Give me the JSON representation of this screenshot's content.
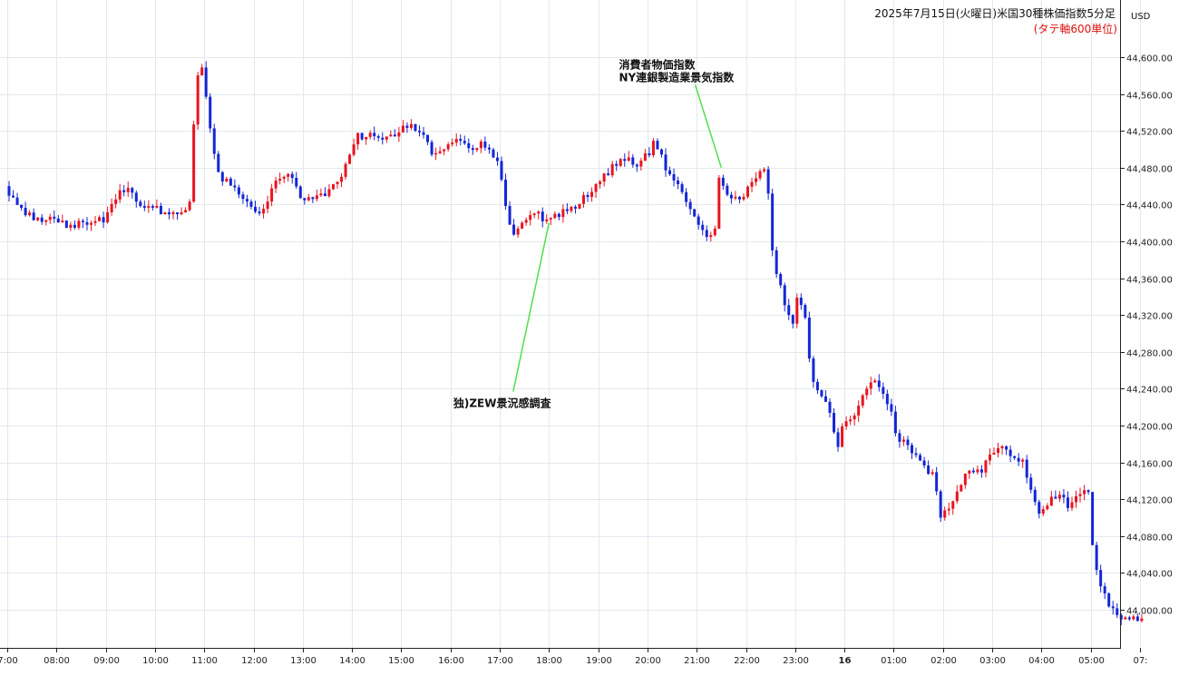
{
  "chart_data": {
    "type": "candlestick",
    "title": "2025年7月15日(火曜日)米国30種株価指数5分足",
    "subtitle": "(タテ軸600単位)",
    "currency": "USD",
    "grid": true,
    "ylim": [
      43960,
      44640
    ],
    "y_ticks": [
      "44,000.00",
      "44,040.00",
      "44,080.00",
      "44,120.00",
      "44,160.00",
      "44,200.00",
      "44,240.00",
      "44,280.00",
      "44,320.00",
      "44,360.00",
      "44,400.00",
      "44,440.00",
      "44,480.00",
      "44,520.00",
      "44,560.00",
      "44,600.00"
    ],
    "y_tick_values": [
      44000,
      44040,
      44080,
      44120,
      44160,
      44200,
      44240,
      44280,
      44320,
      44360,
      44400,
      44440,
      44480,
      44520,
      44560,
      44600
    ],
    "x_ticks": [
      {
        "label": "7:00",
        "hours": 7
      },
      {
        "label": "08:00",
        "hours": 8
      },
      {
        "label": "09:00",
        "hours": 9
      },
      {
        "label": "10:00",
        "hours": 10
      },
      {
        "label": "11:00",
        "hours": 11
      },
      {
        "label": "12:00",
        "hours": 12
      },
      {
        "label": "13:00",
        "hours": 13
      },
      {
        "label": "14:00",
        "hours": 14
      },
      {
        "label": "15:00",
        "hours": 15
      },
      {
        "label": "16:00",
        "hours": 16
      },
      {
        "label": "17:00",
        "hours": 17
      },
      {
        "label": "18:00",
        "hours": 18
      },
      {
        "label": "19:00",
        "hours": 19
      },
      {
        "label": "20:00",
        "hours": 20
      },
      {
        "label": "21:00",
        "hours": 21
      },
      {
        "label": "22:00",
        "hours": 22
      },
      {
        "label": "23:00",
        "hours": 23
      },
      {
        "label": "16",
        "hours": 24,
        "bold": true
      },
      {
        "label": "01:00",
        "hours": 25
      },
      {
        "label": "02:00",
        "hours": 26
      },
      {
        "label": "03:00",
        "hours": 27
      },
      {
        "label": "04:00",
        "hours": 28
      },
      {
        "label": "05:00",
        "hours": 29
      },
      {
        "label": "07:",
        "hours": 30
      }
    ],
    "up_color": "#e8141f",
    "down_color": "#1426d6",
    "annotations": [
      {
        "lines": [
          "独)ZEW景況感調査"
        ],
        "at_hours": 18.0,
        "at_price": 44420,
        "label_hours": 17.2,
        "label_price": 44232
      },
      {
        "lines": [
          "消費者物価指数",
          "NY連銀製造業景気指数"
        ],
        "at_hours": 21.5,
        "at_price": 44480,
        "label_hours": 21.3,
        "label_price": 44580
      }
    ],
    "waypoints": [
      [
        7.0,
        44460
      ],
      [
        7.25,
        44440
      ],
      [
        7.6,
        44425
      ],
      [
        8.0,
        44425
      ],
      [
        8.3,
        44415
      ],
      [
        8.6,
        44420
      ],
      [
        9.0,
        44425
      ],
      [
        9.25,
        44450
      ],
      [
        9.5,
        44455
      ],
      [
        9.8,
        44440
      ],
      [
        10.0,
        44435
      ],
      [
        10.3,
        44430
      ],
      [
        10.6,
        44425
      ],
      [
        10.75,
        44440
      ],
      [
        10.85,
        44540
      ],
      [
        10.95,
        44600
      ],
      [
        11.05,
        44570
      ],
      [
        11.2,
        44510
      ],
      [
        11.35,
        44470
      ],
      [
        11.5,
        44465
      ],
      [
        11.8,
        44450
      ],
      [
        12.0,
        44440
      ],
      [
        12.2,
        44430
      ],
      [
        12.4,
        44455
      ],
      [
        12.6,
        44470
      ],
      [
        12.8,
        44470
      ],
      [
        13.0,
        44450
      ],
      [
        13.2,
        44445
      ],
      [
        13.4,
        44450
      ],
      [
        13.6,
        44455
      ],
      [
        13.8,
        44470
      ],
      [
        14.0,
        44490
      ],
      [
        14.15,
        44515
      ],
      [
        14.4,
        44515
      ],
      [
        14.7,
        44510
      ],
      [
        15.0,
        44520
      ],
      [
        15.3,
        44525
      ],
      [
        15.5,
        44515
      ],
      [
        15.7,
        44495
      ],
      [
        15.9,
        44500
      ],
      [
        16.15,
        44510
      ],
      [
        16.4,
        44500
      ],
      [
        16.7,
        44505
      ],
      [
        16.9,
        44495
      ],
      [
        17.05,
        44480
      ],
      [
        17.15,
        44445
      ],
      [
        17.3,
        44405
      ],
      [
        17.5,
        44420
      ],
      [
        17.7,
        44435
      ],
      [
        17.9,
        44425
      ],
      [
        18.1,
        44425
      ],
      [
        18.4,
        44435
      ],
      [
        18.7,
        44445
      ],
      [
        19.0,
        44460
      ],
      [
        19.3,
        44480
      ],
      [
        19.6,
        44495
      ],
      [
        19.8,
        44475
      ],
      [
        20.0,
        44495
      ],
      [
        20.2,
        44510
      ],
      [
        20.4,
        44480
      ],
      [
        20.6,
        44465
      ],
      [
        20.8,
        44445
      ],
      [
        21.0,
        44430
      ],
      [
        21.2,
        44410
      ],
      [
        21.4,
        44400
      ],
      [
        21.5,
        44470
      ],
      [
        21.65,
        44450
      ],
      [
        21.8,
        44445
      ],
      [
        22.0,
        44450
      ],
      [
        22.2,
        44470
      ],
      [
        22.4,
        44480
      ],
      [
        22.5,
        44455
      ],
      [
        22.6,
        44380
      ],
      [
        22.8,
        44340
      ],
      [
        23.0,
        44310
      ],
      [
        23.1,
        44345
      ],
      [
        23.25,
        44320
      ],
      [
        23.35,
        44260
      ],
      [
        23.5,
        44240
      ],
      [
        23.7,
        44225
      ],
      [
        23.9,
        44170
      ],
      [
        24.0,
        44200
      ],
      [
        24.2,
        44205
      ],
      [
        24.4,
        44235
      ],
      [
        24.6,
        44250
      ],
      [
        24.8,
        44235
      ],
      [
        25.0,
        44215
      ],
      [
        25.1,
        44185
      ],
      [
        25.3,
        44180
      ],
      [
        25.5,
        44170
      ],
      [
        25.7,
        44150
      ],
      [
        25.85,
        44145
      ],
      [
        26.0,
        44100
      ],
      [
        26.2,
        44110
      ],
      [
        26.4,
        44135
      ],
      [
        26.6,
        44155
      ],
      [
        26.8,
        44150
      ],
      [
        27.0,
        44170
      ],
      [
        27.2,
        44175
      ],
      [
        27.4,
        44170
      ],
      [
        27.6,
        44165
      ],
      [
        27.8,
        44140
      ],
      [
        28.0,
        44100
      ],
      [
        28.2,
        44115
      ],
      [
        28.4,
        44130
      ],
      [
        28.6,
        44110
      ],
      [
        28.8,
        44125
      ],
      [
        29.0,
        44130
      ],
      [
        29.1,
        44060
      ],
      [
        29.25,
        44025
      ],
      [
        29.4,
        44005
      ],
      [
        29.6,
        43995
      ],
      [
        29.8,
        43990
      ],
      [
        30.0,
        43990
      ]
    ]
  }
}
